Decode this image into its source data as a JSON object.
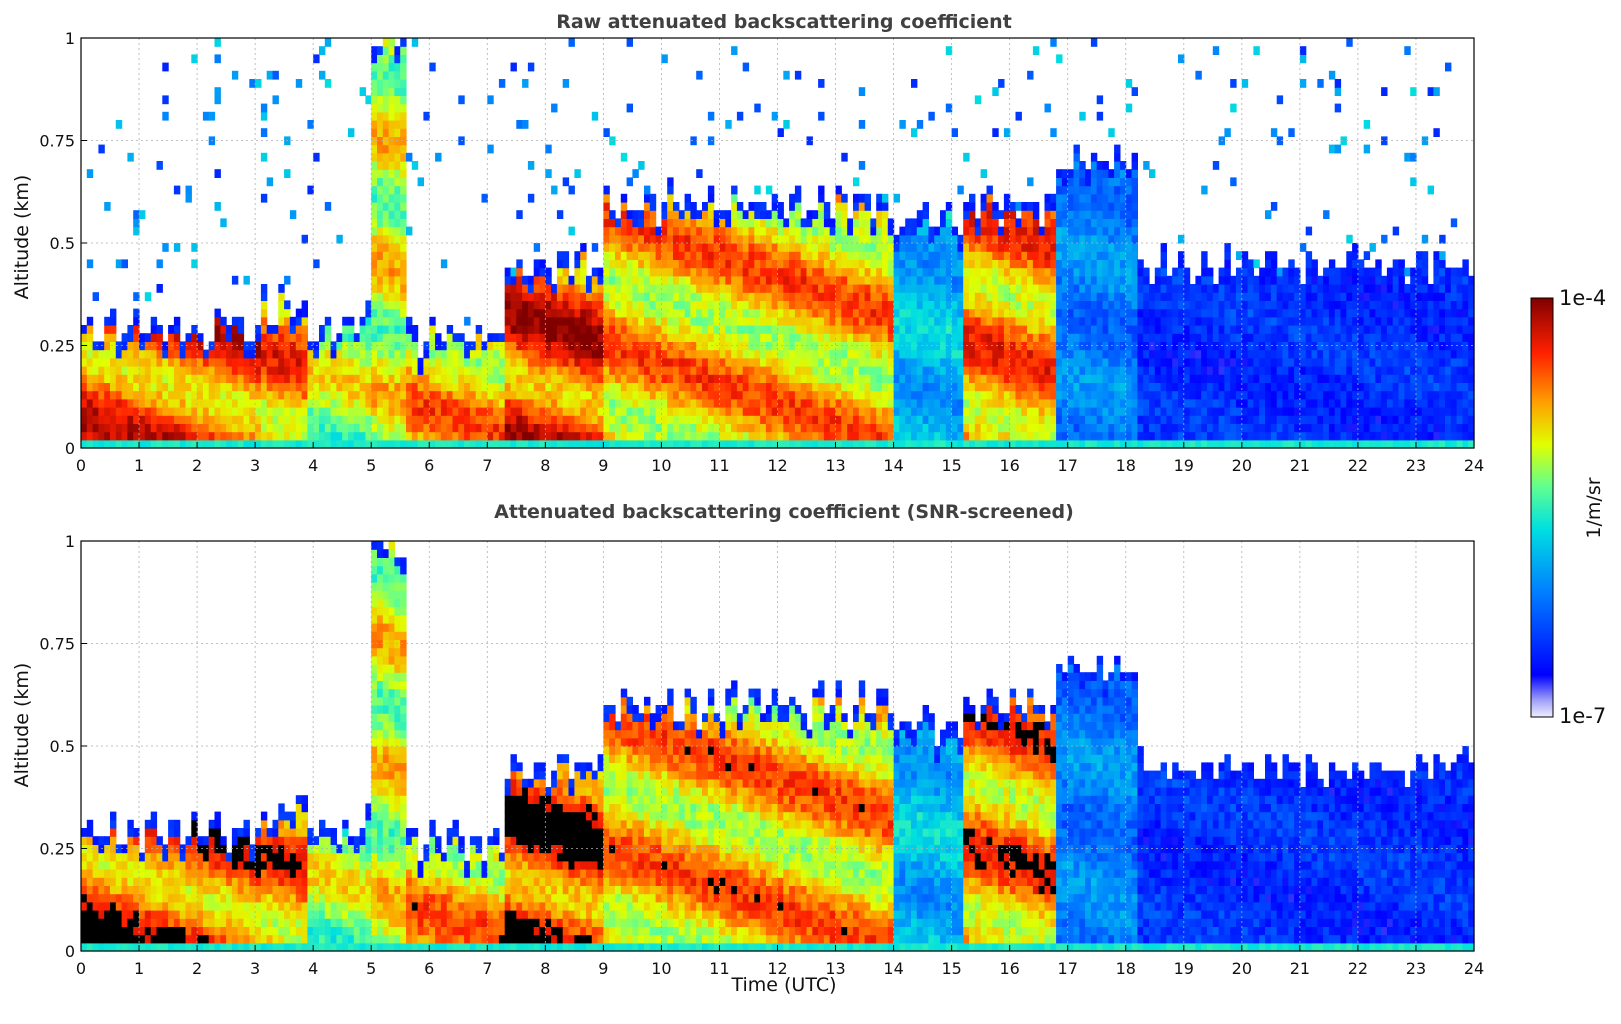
{
  "chart_data": [
    {
      "type": "heatmap",
      "title": "Raw attenuated backscattering coefficient",
      "xlabel": "",
      "ylabel": "Altitude (km)",
      "xlim": [
        0,
        24
      ],
      "ylim": [
        0,
        1
      ],
      "x_ticks": [
        "0",
        "1",
        "2",
        "3",
        "4",
        "5",
        "6",
        "7",
        "8",
        "9",
        "10",
        "11",
        "12",
        "13",
        "14",
        "15",
        "16",
        "17",
        "18",
        "19",
        "20",
        "21",
        "22",
        "23",
        "24"
      ],
      "y_ticks": [
        "0",
        "0.25",
        "0.5",
        "0.75",
        "1"
      ],
      "grid": true,
      "screened": false,
      "profile_segments": [
        {
          "t": [
            0,
            3.1
          ],
          "cloud_top": 0.3,
          "base_level": 0.95
        },
        {
          "t": [
            3.1,
            3.9
          ],
          "cloud_top": 0.35,
          "base_level": 0.9
        },
        {
          "t": [
            3.9,
            5.0
          ],
          "cloud_top": 0.3,
          "base_level": 0.7
        },
        {
          "t": [
            5.0,
            5.6
          ],
          "cloud_top": 1.0,
          "base_level": 0.75
        },
        {
          "t": [
            5.6,
            7.3
          ],
          "cloud_top": 0.27,
          "base_level": 0.85
        },
        {
          "t": [
            7.3,
            9.0
          ],
          "cloud_top": 0.45,
          "base_level": 1.0
        },
        {
          "t": [
            9.0,
            14.0
          ],
          "cloud_top": 0.6,
          "base_level": 0.85
        },
        {
          "t": [
            14.0,
            15.2
          ],
          "cloud_top": 0.55,
          "base_level": 0.45
        },
        {
          "t": [
            15.2,
            16.8
          ],
          "cloud_top": 0.6,
          "base_level": 0.9
        },
        {
          "t": [
            16.8,
            18.2
          ],
          "cloud_top": 0.7,
          "base_level": 0.35
        },
        {
          "t": [
            18.2,
            24.0
          ],
          "cloud_top": 0.45,
          "base_level": 0.2
        }
      ]
    },
    {
      "type": "heatmap",
      "title": "Attenuated backscattering coefficient (SNR-screened)",
      "xlabel": "Time (UTC)",
      "ylabel": "Altitude (km)",
      "xlim": [
        0,
        24
      ],
      "ylim": [
        0,
        1
      ],
      "x_ticks": [
        "0",
        "1",
        "2",
        "3",
        "4",
        "5",
        "6",
        "7",
        "8",
        "9",
        "10",
        "11",
        "12",
        "13",
        "14",
        "15",
        "16",
        "17",
        "18",
        "19",
        "20",
        "21",
        "22",
        "23",
        "24"
      ],
      "y_ticks": [
        "0",
        "0.25",
        "0.5",
        "0.75",
        "1"
      ],
      "grid": true,
      "screened": true
    }
  ],
  "colorbar": {
    "label": "1/m/sr",
    "max_label": "1e-4",
    "min_label": "1e-7",
    "scale": "log",
    "range": [
      1e-07,
      0.0001
    ],
    "colormap": "jet"
  }
}
